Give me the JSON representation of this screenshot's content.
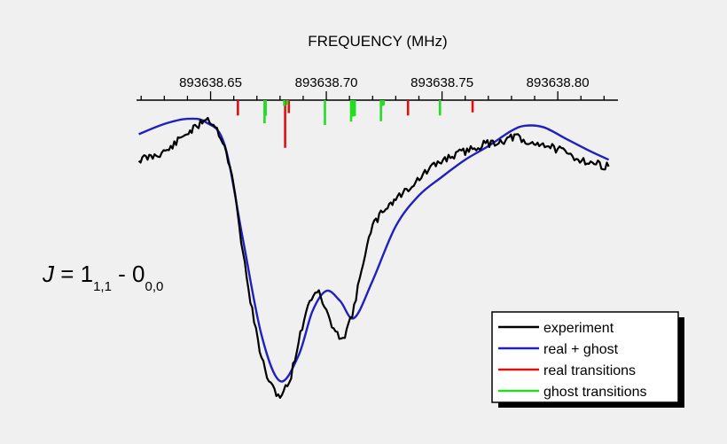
{
  "chart_data": {
    "type": "line",
    "xlabel": "FREQUENCY  (MHz)",
    "xlim": [
      893638.618,
      893638.826
    ],
    "x_ticks": [
      893638.65,
      893638.7,
      893638.75,
      893638.8
    ],
    "x_tick_labels": [
      "893638.65",
      "893638.70",
      "893638.75",
      "893638.80"
    ],
    "x_axis_position": "top",
    "y_axis_visible": false,
    "grid": false,
    "annotation": {
      "J": "J",
      "eq": " = 1",
      "sub1": "1,1",
      "dash": " - 0",
      "sub2": "0,0"
    },
    "legend_position": "bottom-right",
    "legend": [
      {
        "label": "experiment",
        "color": "#000000"
      },
      {
        "label": "real + ghost",
        "color": "#2020c0"
      },
      {
        "label": "real transitions",
        "color": "#e01010"
      },
      {
        "label": "ghost transitions",
        "color": "#22dd22"
      }
    ],
    "series": [
      {
        "name": "experiment",
        "color": "#000000",
        "x": [
          893638.619,
          893638.625,
          893638.632,
          893638.639,
          893638.644,
          893638.648,
          893638.652,
          893638.656,
          893638.66,
          893638.664,
          893638.668,
          893638.672,
          893638.676,
          893638.68,
          893638.684,
          893638.688,
          893638.692,
          893638.696,
          893638.7,
          893638.704,
          893638.708,
          893638.712,
          893638.716,
          893638.72,
          893638.725,
          893638.73,
          893638.737,
          893638.745,
          893638.752,
          893638.76,
          893638.768,
          893638.776,
          893638.782,
          893638.786,
          893638.792,
          893638.8,
          893638.808,
          893638.815,
          893638.822
        ],
        "y": [
          -0.45,
          -0.35,
          -0.15,
          0.3,
          0.5,
          0.8,
          0.55,
          0.0,
          -1.2,
          -3.2,
          -4.9,
          -6.3,
          -7.1,
          -7.4,
          -7.0,
          -5.8,
          -4.7,
          -4.25,
          -4.9,
          -5.6,
          -5.6,
          -4.8,
          -3.4,
          -2.4,
          -1.9,
          -1.6,
          -1.2,
          -0.7,
          -0.4,
          -0.2,
          0.0,
          0.1,
          0.25,
          0.0,
          0.05,
          -0.15,
          -0.4,
          -0.55,
          -0.65
        ]
      },
      {
        "name": "real + ghost",
        "color": "#2020c0",
        "x": [
          893638.619,
          893638.63,
          893638.64,
          893638.648,
          893638.656,
          893638.664,
          893638.672,
          893638.68,
          893638.688,
          893638.694,
          893638.7,
          893638.706,
          893638.712,
          893638.72,
          893638.73,
          893638.74,
          893638.75,
          893638.76,
          893638.77,
          893638.78,
          893638.786,
          893638.794,
          893638.804,
          893638.814,
          893638.822
        ],
        "y": [
          0.3,
          0.6,
          0.75,
          0.65,
          0.0,
          -2.8,
          -5.6,
          -6.95,
          -6.2,
          -4.9,
          -4.3,
          -4.6,
          -5.1,
          -4.0,
          -2.4,
          -1.5,
          -0.95,
          -0.45,
          -0.05,
          0.4,
          0.55,
          0.5,
          0.15,
          -0.2,
          -0.45
        ]
      }
    ],
    "sticks": [
      {
        "name": "real transitions",
        "color": "#e01010",
        "x": [
          893638.6618,
          893638.6822,
          893638.6838,
          893638.7353,
          893638.7632
        ],
        "height": [
          0.45,
          1.4,
          0.38,
          0.45,
          0.36
        ]
      },
      {
        "name": "ghost transitions",
        "color": "#22dd22",
        "x": [
          893638.6733,
          893638.6738,
          893638.6818,
          893638.6831,
          893638.6994,
          893638.7107,
          893638.7115,
          893638.7121,
          893638.7123,
          893638.7236,
          893638.7242,
          893638.7248,
          893638.7491
        ],
        "height": [
          0.68,
          0.46,
          0.17,
          0.14,
          0.73,
          0.63,
          0.48,
          0.47,
          0.46,
          0.62,
          0.17,
          0.15,
          0.45
        ]
      }
    ]
  }
}
